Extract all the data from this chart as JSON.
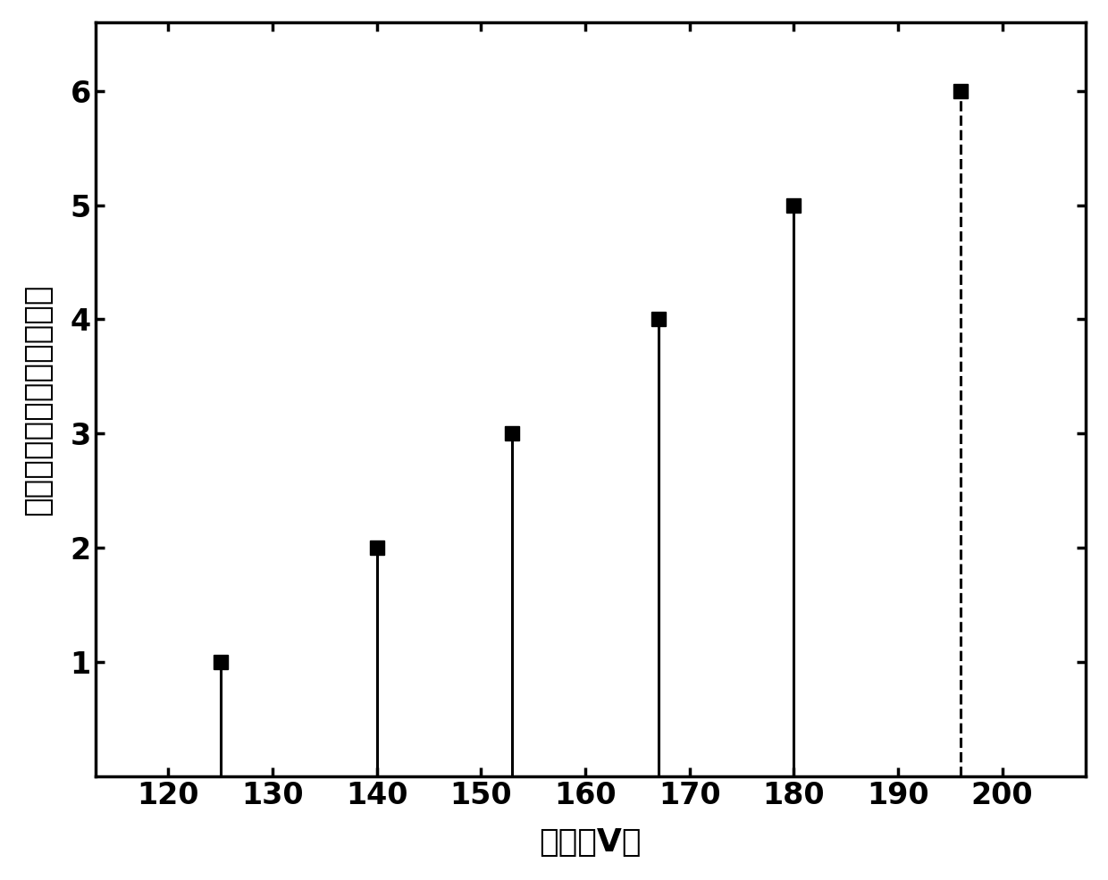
{
  "x_values": [
    125,
    140,
    153,
    167,
    180,
    196
  ],
  "y_values": [
    1,
    2,
    3,
    4,
    5,
    6
  ],
  "dashed_index": 5,
  "xlabel": "幅度（V）",
  "ylabel_chars": [
    "单",
    "粒",
    "子",
    "翻",
    "转",
    "效",
    "应",
    "次",
    "数",
    "（",
    "次",
    "）"
  ],
  "xlim": [
    113,
    208
  ],
  "ylim": [
    0,
    6.6
  ],
  "xticks": [
    120,
    130,
    140,
    150,
    160,
    170,
    180,
    190,
    200
  ],
  "yticks": [
    1,
    2,
    3,
    4,
    5,
    6
  ],
  "line_color": "#000000",
  "marker_color": "#000000",
  "background_color": "#ffffff",
  "label_fontsize": 26,
  "tick_fontsize": 24,
  "marker_size": 11,
  "stem_linewidth": 2.2,
  "dashed_linewidth": 2.2
}
